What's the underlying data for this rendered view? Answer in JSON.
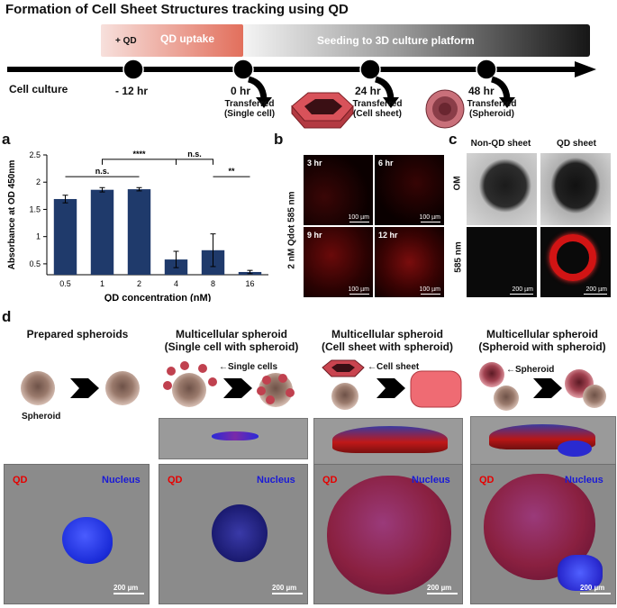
{
  "title": "Formation of Cell Sheet Structures tracking using QD",
  "timeline": {
    "qd_label": "+ QD",
    "qd_uptake": "QD uptake",
    "seeding": "Seeding to 3D culture platform",
    "cell_culture": "Cell culture",
    "points": [
      {
        "time": "- 12 hr",
        "note": ""
      },
      {
        "time": "0 hr",
        "note": "Transferred\n(Single cell)"
      },
      {
        "time": "24 hr",
        "note": "Transferred\n(Cell sheet)"
      },
      {
        "time": "48 hr",
        "note": "Transferred\n(Spheroid)"
      }
    ],
    "colors": {
      "uptake_start": "#f3d2cc",
      "uptake_end": "#e8735f",
      "seed_start": "#ffffff",
      "seed_end": "#1a1a1a"
    }
  },
  "panel_a": {
    "letter": "a",
    "chart_data": {
      "type": "bar",
      "categories": [
        "0.5",
        "1",
        "2",
        "4",
        "8",
        "16"
      ],
      "values": [
        1.69,
        1.86,
        1.87,
        0.58,
        0.75,
        0.35
      ],
      "errors": [
        0.07,
        0.04,
        0.03,
        0.15,
        0.3,
        0.03
      ],
      "xlabel": "QD concentration (nM)",
      "ylabel": "Absorbance at OD 450nm",
      "ylim": [
        0.3,
        2.5
      ],
      "yticks": [
        0.5,
        1,
        1.5,
        2,
        2.5
      ],
      "bar_color": "#1f3a6b",
      "significance": [
        {
          "label": "n.s.",
          "from": 0,
          "to": 2
        },
        {
          "label": "****",
          "from": 1,
          "to": 3
        },
        {
          "label": "n.s.",
          "from": 3,
          "to": 4
        },
        {
          "label": "**",
          "from": 4,
          "to": 5
        }
      ]
    }
  },
  "panel_b": {
    "letter": "b",
    "side_label": "2 nM Qdot 585 nm",
    "tiles": [
      {
        "label": "3 hr",
        "scale": "100 µm"
      },
      {
        "label": "6 hr",
        "scale": "100 µm"
      },
      {
        "label": "9 hr",
        "scale": "100 µm"
      },
      {
        "label": "12 hr",
        "scale": "100 µm"
      }
    ]
  },
  "panel_c": {
    "letter": "c",
    "col1": "Non-QD sheet",
    "col2": "QD sheet",
    "row1": "OM",
    "row2": "585 nm",
    "scale1": "200 µm",
    "scale2": "200 µm"
  },
  "panel_d": {
    "letter": "d",
    "columns": [
      {
        "title": "Prepared spheroids",
        "subtitle": "",
        "callout": "",
        "sub_label": "Spheroid",
        "qd": "QD",
        "nucleus": "Nucleus",
        "scale": "200 µm"
      },
      {
        "title": "Multicellular spheroid",
        "subtitle": "(Single cell with spheroid)",
        "callout": "←Single cells",
        "sub_label": "",
        "qd": "QD",
        "nucleus": "Nucleus",
        "scale": "200 µm"
      },
      {
        "title": "Multicellular spheroid",
        "subtitle": "(Cell sheet with spheroid)",
        "callout": "←Cell sheet",
        "sub_label": "",
        "qd": "QD",
        "nucleus": "Nucleus",
        "scale": "200 µm"
      },
      {
        "title": "Multicellular spheroid",
        "subtitle": "(Spheroid with spheroid)",
        "callout": "←Spheroid",
        "sub_label": "",
        "qd": "QD",
        "nucleus": "Nucleus",
        "scale": "200 µm"
      }
    ]
  }
}
